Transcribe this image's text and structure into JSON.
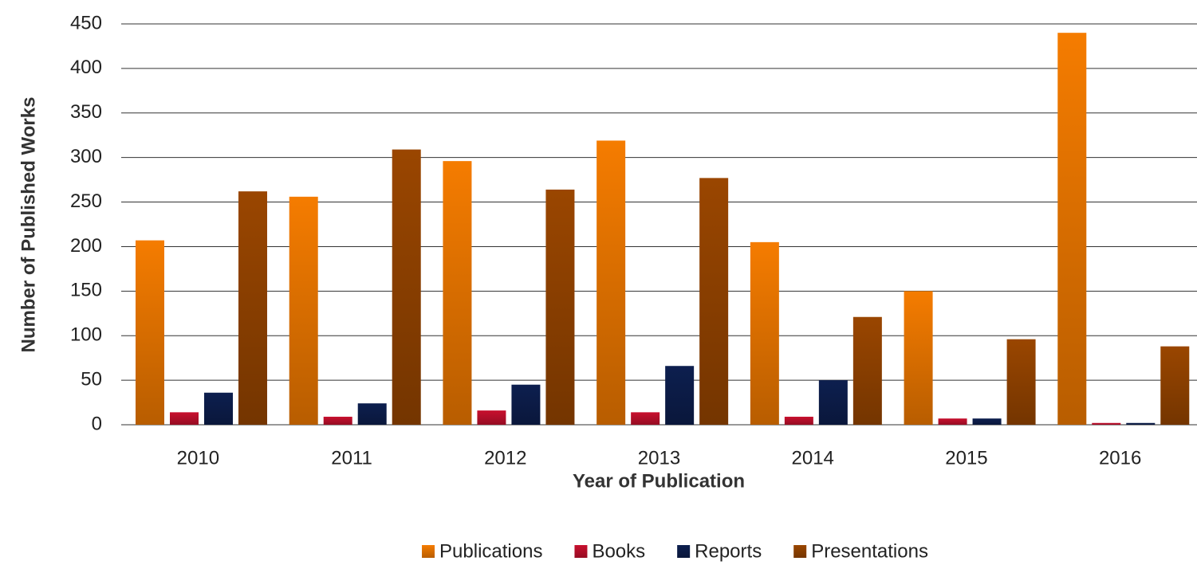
{
  "chart_data": {
    "type": "bar",
    "x_label": "Year of Publication",
    "y_label": "Number of Published Works",
    "categories": [
      "2010",
      "2011",
      "2012",
      "2013",
      "2014",
      "2015",
      "2016"
    ],
    "series": [
      {
        "name": "Publications",
        "color": "#f57c00",
        "values": [
          207,
          256,
          296,
          319,
          205,
          150,
          440
        ]
      },
      {
        "name": "Books",
        "color": "#c8102e",
        "values": [
          14,
          9,
          16,
          14,
          9,
          7,
          2
        ]
      },
      {
        "name": "Reports",
        "color": "#0d1f4f",
        "values": [
          36,
          24,
          45,
          66,
          50,
          7,
          2
        ]
      },
      {
        "name": "Presentations",
        "color": "#9a4600",
        "values": [
          262,
          309,
          264,
          277,
          121,
          96,
          88
        ]
      }
    ],
    "ylim": [
      0,
      450
    ],
    "yticks": [
      0,
      50,
      100,
      150,
      200,
      250,
      300,
      350,
      400,
      450
    ],
    "grid": true,
    "legend": "bottom"
  }
}
